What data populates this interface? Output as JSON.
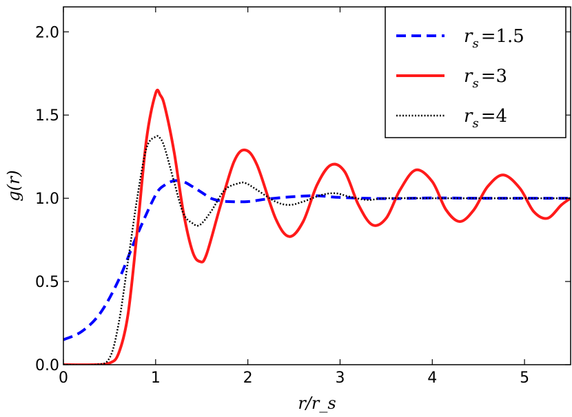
{
  "chart_data": {
    "type": "line",
    "xlabel": "r/r_s",
    "ylabel": "g(r)",
    "xlim": [
      0,
      5.5
    ],
    "ylim": [
      0,
      2.15
    ],
    "xticks": [
      0,
      1,
      2,
      3,
      4,
      5
    ],
    "yticks": [
      0.0,
      0.5,
      1.0,
      1.5,
      2.0
    ],
    "xtick_labels": [
      "0",
      "1",
      "2",
      "3",
      "4",
      "5"
    ],
    "ytick_labels": [
      "0.0",
      "0.5",
      "1.0",
      "1.5",
      "2.0"
    ],
    "grid": false,
    "legend_position": "top-right",
    "series": [
      {
        "name": "r_s =1.5",
        "legend_label": "r",
        "legend_sub": "s",
        "legend_value": "=1.5",
        "color": "#0000ff",
        "style": "dashed",
        "x": [
          0.0,
          0.2,
          0.4,
          0.6,
          0.8,
          1.0,
          1.1,
          1.2,
          1.3,
          1.4,
          1.5,
          1.6,
          1.7,
          1.8,
          2.0,
          2.2,
          2.5,
          2.75,
          3.0,
          3.5,
          4.0,
          4.5,
          5.0,
          5.5
        ],
        "y": [
          0.15,
          0.2,
          0.31,
          0.51,
          0.78,
          1.02,
          1.08,
          1.105,
          1.1,
          1.07,
          1.035,
          1.0,
          0.985,
          0.98,
          0.98,
          0.995,
          1.01,
          1.015,
          1.005,
          0.998,
          1.002,
          1.0,
          1.0,
          1.0
        ]
      },
      {
        "name": "r_s =3",
        "legend_label": "r",
        "legend_sub": "s",
        "legend_value": "=3",
        "color": "#ff1a1a",
        "style": "solid",
        "x": [
          0.0,
          0.3,
          0.5,
          0.6,
          0.7,
          0.8,
          0.9,
          1.0,
          1.05,
          1.1,
          1.2,
          1.3,
          1.4,
          1.48,
          1.55,
          1.7,
          1.85,
          1.97,
          2.1,
          2.3,
          2.45,
          2.6,
          2.75,
          2.9,
          3.05,
          3.2,
          3.35,
          3.5,
          3.65,
          3.82,
          4.0,
          4.15,
          4.3,
          4.45,
          4.6,
          4.77,
          4.95,
          5.1,
          5.25,
          5.4,
          5.5
        ],
        "y": [
          0.0,
          0.0,
          0.01,
          0.07,
          0.3,
          0.8,
          1.35,
          1.63,
          1.62,
          1.55,
          1.28,
          0.92,
          0.68,
          0.62,
          0.66,
          0.95,
          1.22,
          1.29,
          1.2,
          0.88,
          0.77,
          0.86,
          1.08,
          1.2,
          1.16,
          0.96,
          0.84,
          0.88,
          1.05,
          1.17,
          1.1,
          0.93,
          0.86,
          0.93,
          1.07,
          1.14,
          1.06,
          0.92,
          0.88,
          0.96,
          1.0
        ]
      },
      {
        "name": "r_s =4",
        "legend_label": "r",
        "legend_sub": "s",
        "legend_value": "=4",
        "color": "#000000",
        "style": "dotted",
        "x": [
          0.0,
          0.35,
          0.5,
          0.6,
          0.7,
          0.8,
          0.9,
          1.0,
          1.05,
          1.1,
          1.2,
          1.3,
          1.4,
          1.48,
          1.6,
          1.75,
          1.9,
          1.98,
          2.1,
          2.3,
          2.45,
          2.6,
          2.8,
          2.95,
          3.1,
          3.3,
          3.5,
          4.0,
          4.5,
          5.0,
          5.5
        ],
        "y": [
          0.0,
          0.0,
          0.04,
          0.25,
          0.62,
          1.0,
          1.3,
          1.37,
          1.36,
          1.3,
          1.1,
          0.91,
          0.85,
          0.84,
          0.92,
          1.05,
          1.09,
          1.09,
          1.05,
          0.98,
          0.96,
          0.98,
          1.02,
          1.03,
          1.01,
          0.99,
          1.0,
          1.0,
          1.0,
          1.0,
          1.0
        ]
      }
    ]
  }
}
